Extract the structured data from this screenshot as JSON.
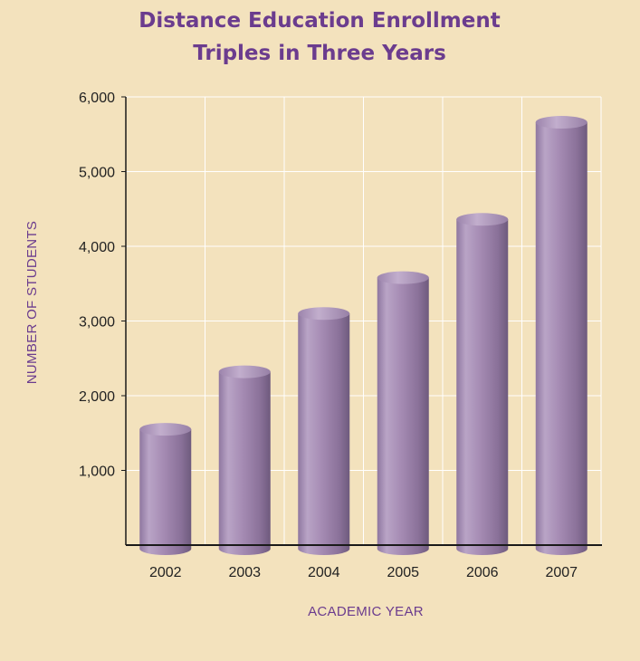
{
  "chart_data": {
    "type": "bar",
    "title_lines": [
      "Distance Education Enrollment",
      "Triples in Three Years"
    ],
    "xlabel": "ACADEMIC YEAR",
    "ylabel": "NUMBER OF STUDENTS",
    "categories": [
      "2002",
      "2003",
      "2004",
      "2005",
      "2006",
      "2007"
    ],
    "values": [
      1550,
      2320,
      3100,
      3580,
      4360,
      5660
    ],
    "ylim": [
      0,
      6000
    ],
    "yticks": [
      {
        "value": 1000,
        "label": "1,000"
      },
      {
        "value": 2000,
        "label": "2,000"
      },
      {
        "value": 3000,
        "label": "3,000"
      },
      {
        "value": 4000,
        "label": "4,000"
      },
      {
        "value": 5000,
        "label": "5,000"
      },
      {
        "value": 6000,
        "label": "6,000"
      }
    ],
    "grid": true,
    "bar_style": "cylinder",
    "colors": {
      "background": "#f3e2bd",
      "bar": "#a68cb4",
      "title": "#6b3c8e",
      "grid": "#ffffff",
      "axis": "#1a1a1a"
    }
  }
}
